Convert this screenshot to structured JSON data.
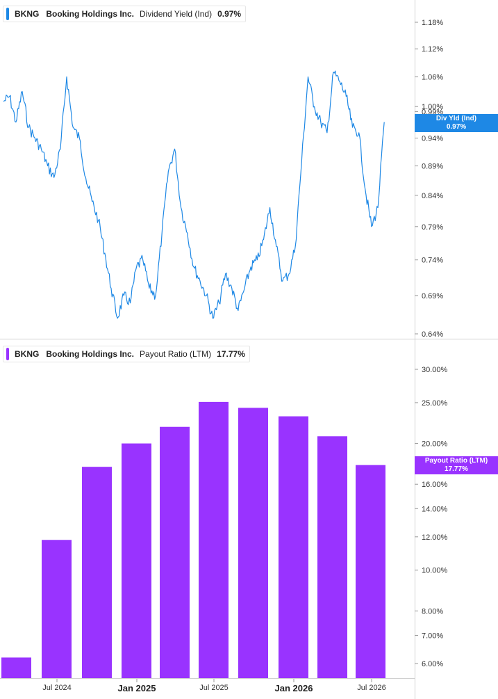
{
  "panels": [
    {
      "ticker": "BKNG",
      "company": "Booking Holdings Inc.",
      "metric": "Dividend Yield (Ind)",
      "value": "0.97%",
      "tag_label": "Div Yld (Ind)",
      "tag_value": "0.97%",
      "color": "#1e88e5"
    },
    {
      "ticker": "BKNG",
      "company": "Booking Holdings Inc.",
      "metric": "Payout Ratio (LTM)",
      "value": "17.77%",
      "tag_label": "Payout Ratio (LTM)",
      "tag_value": "17.77%",
      "color": "#9933ff"
    }
  ],
  "chart_data": [
    {
      "type": "line",
      "series": [
        {
          "name": "Dividend Yield (Ind)",
          "x": [
            "2024-03-28",
            "2024-04-10",
            "2024-04-24",
            "2024-05-08",
            "2024-05-22",
            "2024-06-05",
            "2024-06-19",
            "2024-07-03",
            "2024-07-17",
            "2024-07-31",
            "2024-08-14",
            "2024-08-28",
            "2024-09-11",
            "2024-09-25",
            "2024-10-09",
            "2024-10-23",
            "2024-11-06",
            "2024-11-20",
            "2024-12-04",
            "2024-12-18",
            "2025-01-01",
            "2025-01-15",
            "2025-01-29",
            "2025-02-12",
            "2025-02-26",
            "2025-03-12",
            "2025-03-26",
            "2025-04-09",
            "2025-04-23",
            "2025-05-07",
            "2025-05-21",
            "2025-06-04",
            "2025-06-18",
            "2025-07-02",
            "2025-07-16",
            "2025-07-30",
            "2025-08-13",
            "2025-08-27",
            "2025-09-10",
            "2025-09-24",
            "2025-10-08",
            "2025-10-22",
            "2025-11-05",
            "2025-11-19",
            "2025-12-03",
            "2025-12-17",
            "2025-12-31",
            "2026-01-14",
            "2026-01-28",
            "2026-02-11",
            "2026-02-25",
            "2026-03-11",
            "2026-03-25",
            "2026-04-08",
            "2026-04-22",
            "2026-05-06",
            "2026-05-20",
            "2026-06-03",
            "2026-06-17",
            "2026-07-01",
            "2026-07-15",
            "2026-07-29",
            "2026-08-12"
          ],
          "values": [
            1.01,
            1.02,
            0.97,
            1.03,
            0.96,
            0.94,
            0.92,
            0.89,
            0.87,
            0.92,
            1.06,
            0.96,
            0.94,
            0.87,
            0.83,
            0.8,
            0.75,
            0.7,
            0.66,
            0.69,
            0.68,
            0.73,
            0.74,
            0.7,
            0.69,
            0.78,
            0.88,
            0.92,
            0.82,
            0.78,
            0.73,
            0.71,
            0.69,
            0.66,
            0.68,
            0.72,
            0.7,
            0.67,
            0.7,
            0.73,
            0.74,
            0.77,
            0.82,
            0.76,
            0.71,
            0.72,
            0.76,
            0.9,
            1.06,
            1.0,
            0.97,
            0.95,
            1.07,
            1.05,
            1.02,
            0.96,
            0.95,
            0.85,
            0.79,
            0.82,
            0.97,
            null,
            null
          ]
        }
      ],
      "y_ticks": [
        "1.18%",
        "1.12%",
        "1.06%",
        "1.00%",
        "0.99%",
        "0.94%",
        "0.89%",
        "0.84%",
        "0.79%",
        "0.74%",
        "0.69%",
        "0.64%"
      ],
      "scale": "log"
    },
    {
      "type": "bar",
      "categories": [
        "Q2 2024",
        "Q3 2024",
        "Q4 2024",
        "Q1 2025",
        "Q2 2025",
        "Q3 2025",
        "Q4 2025",
        "Q1 2026",
        "Q2 2026",
        "Q3 2026"
      ],
      "series": [
        {
          "name": "Payout Ratio (LTM)",
          "values": [
            6.2,
            11.8,
            17.6,
            20.0,
            21.9,
            25.1,
            24.3,
            23.2,
            20.8,
            17.77
          ]
        }
      ],
      "y_ticks": [
        "30.00%",
        "25.00%",
        "20.00%",
        "16.00%",
        "14.00%",
        "12.00%",
        "10.00%",
        "8.00%",
        "7.00%",
        "6.00%"
      ],
      "scale": "log"
    }
  ],
  "x_axis": {
    "ticks": [
      {
        "label": "Jul 2024",
        "major": false
      },
      {
        "label": "Jan 2025",
        "major": true
      },
      {
        "label": "Jul 2025",
        "major": false
      },
      {
        "label": "Jan 2026",
        "major": true
      },
      {
        "label": "Jul 2026",
        "major": false
      }
    ]
  }
}
